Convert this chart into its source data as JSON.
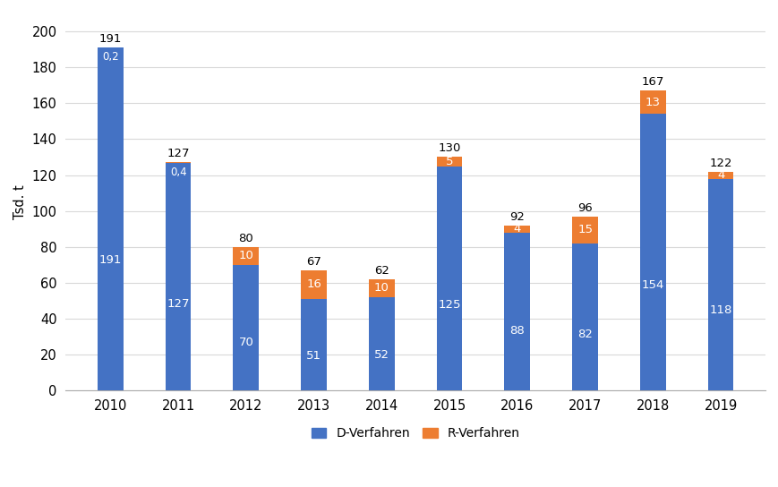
{
  "years": [
    "2010",
    "2011",
    "2012",
    "2013",
    "2014",
    "2015",
    "2016",
    "2017",
    "2018",
    "2019"
  ],
  "d_values": [
    191,
    127,
    70,
    51,
    52,
    125,
    88,
    82,
    154,
    118
  ],
  "r_values": [
    0.2,
    0.4,
    10,
    16,
    10,
    5,
    4,
    15,
    13,
    4
  ],
  "d_labels": [
    "191",
    "127",
    "70",
    "51",
    "52",
    "125",
    "88",
    "82",
    "154",
    "118"
  ],
  "r_labels": [
    null,
    null,
    "10",
    "16",
    "10",
    "5",
    "4",
    "15",
    "13",
    "4"
  ],
  "total_labels": [
    "191",
    "127",
    "80",
    "67",
    "62",
    "130",
    "92",
    "96",
    "167",
    "122"
  ],
  "r_small_labels": [
    "0,2",
    "0,4",
    null,
    null,
    null,
    null,
    null,
    null,
    null,
    null
  ],
  "d_color": "#4472c4",
  "r_color": "#ed7d31",
  "ylabel": "Tsd. t",
  "ylim": [
    0,
    210
  ],
  "yticks": [
    0,
    20,
    40,
    60,
    80,
    100,
    120,
    140,
    160,
    180,
    200
  ],
  "legend_d": "D-Verfahren",
  "legend_r": "R-Verfahren",
  "background_color": "#ffffff",
  "grid_color": "#d9d9d9",
  "bar_width": 0.38
}
